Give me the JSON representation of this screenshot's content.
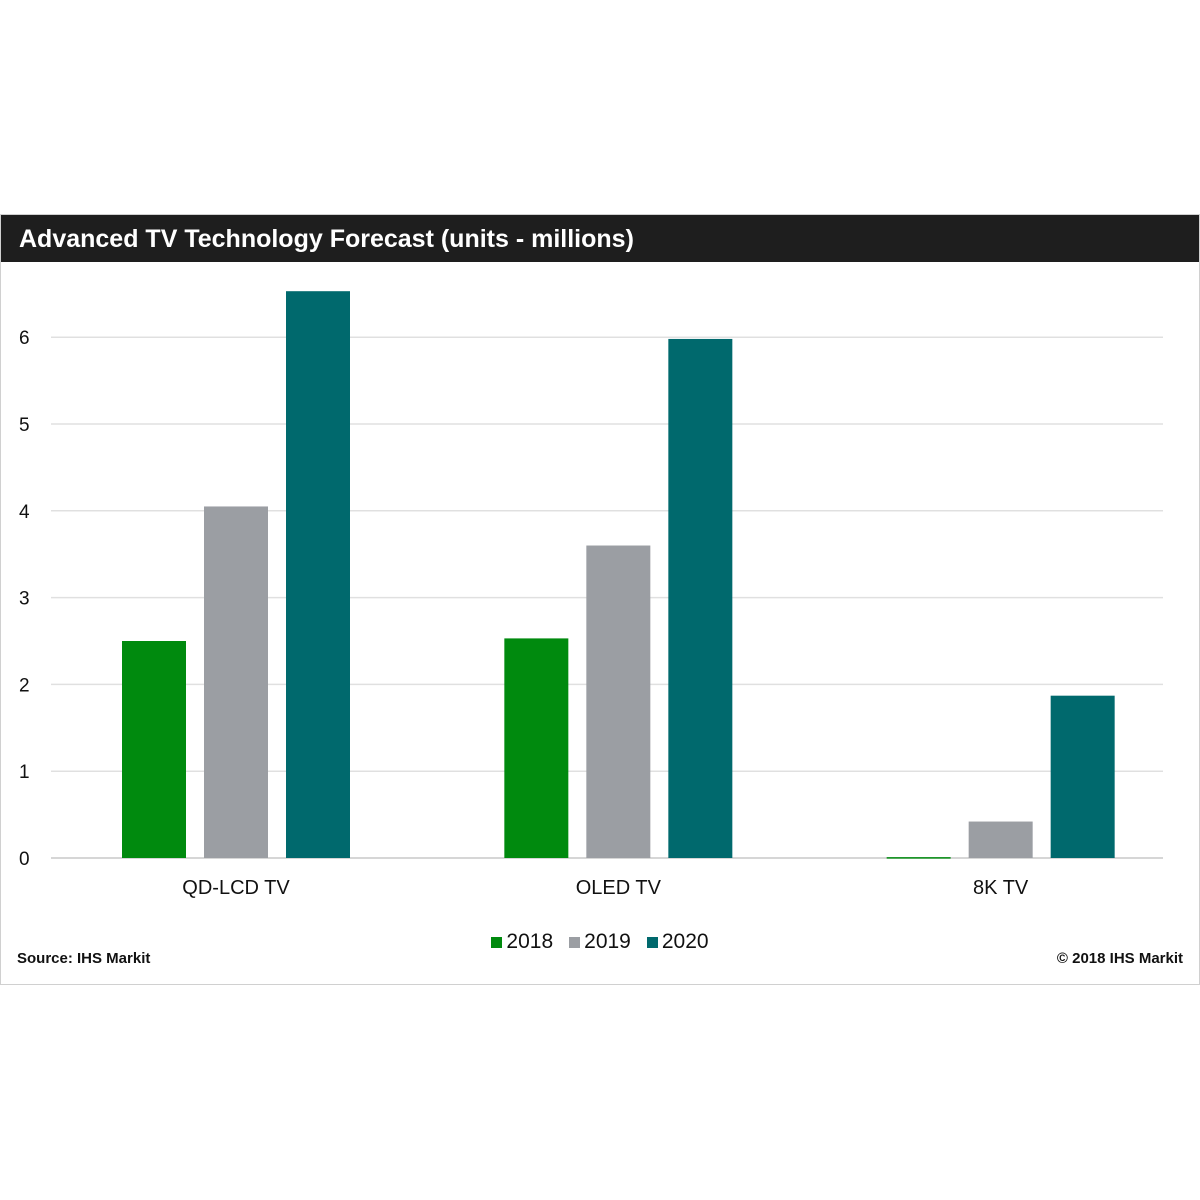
{
  "chart_data": {
    "type": "bar",
    "title": "Advanced TV Technology Forecast (units - millions)",
    "categories": [
      "QD-LCD TV",
      "OLED TV",
      "8K TV"
    ],
    "series": [
      {
        "name": "2018",
        "color": "#008a0e",
        "values": [
          2.5,
          2.53,
          0.01
        ]
      },
      {
        "name": "2019",
        "color": "#9b9ea3",
        "values": [
          4.05,
          3.6,
          0.42
        ]
      },
      {
        "name": "2020",
        "color": "#00696d",
        "values": [
          6.53,
          5.98,
          1.87
        ]
      }
    ],
    "ylim": [
      0,
      6.6
    ],
    "yticks": [
      "0",
      "1",
      "2",
      "3",
      "4",
      "5",
      "6"
    ],
    "grid": true,
    "legend_position": "bottom-center"
  },
  "footer": {
    "source": "Source: IHS Markit",
    "copyright": "© 2018 IHS Markit"
  }
}
